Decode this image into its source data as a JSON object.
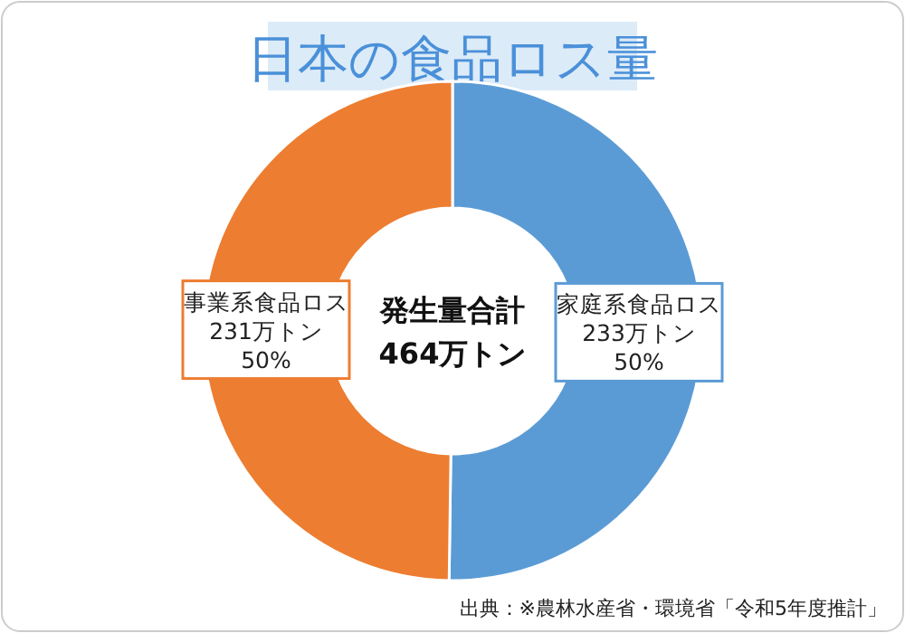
{
  "chart_data": {
    "type": "donut",
    "title": "日本の食品ロス量",
    "categories": [
      "家庭系食品ロス",
      "事業系食品ロス"
    ],
    "values": [
      233,
      231
    ],
    "colors": [
      "#5b9bd5",
      "#ed7d31"
    ],
    "value_labels": [
      "233万トン\n50%",
      "231万トン\n50%"
    ],
    "annotations": [
      "発生量合計\n464万トン",
      "出典：※農林水産省・環境省「令和5年度推計」"
    ],
    "legend": false
  }
}
